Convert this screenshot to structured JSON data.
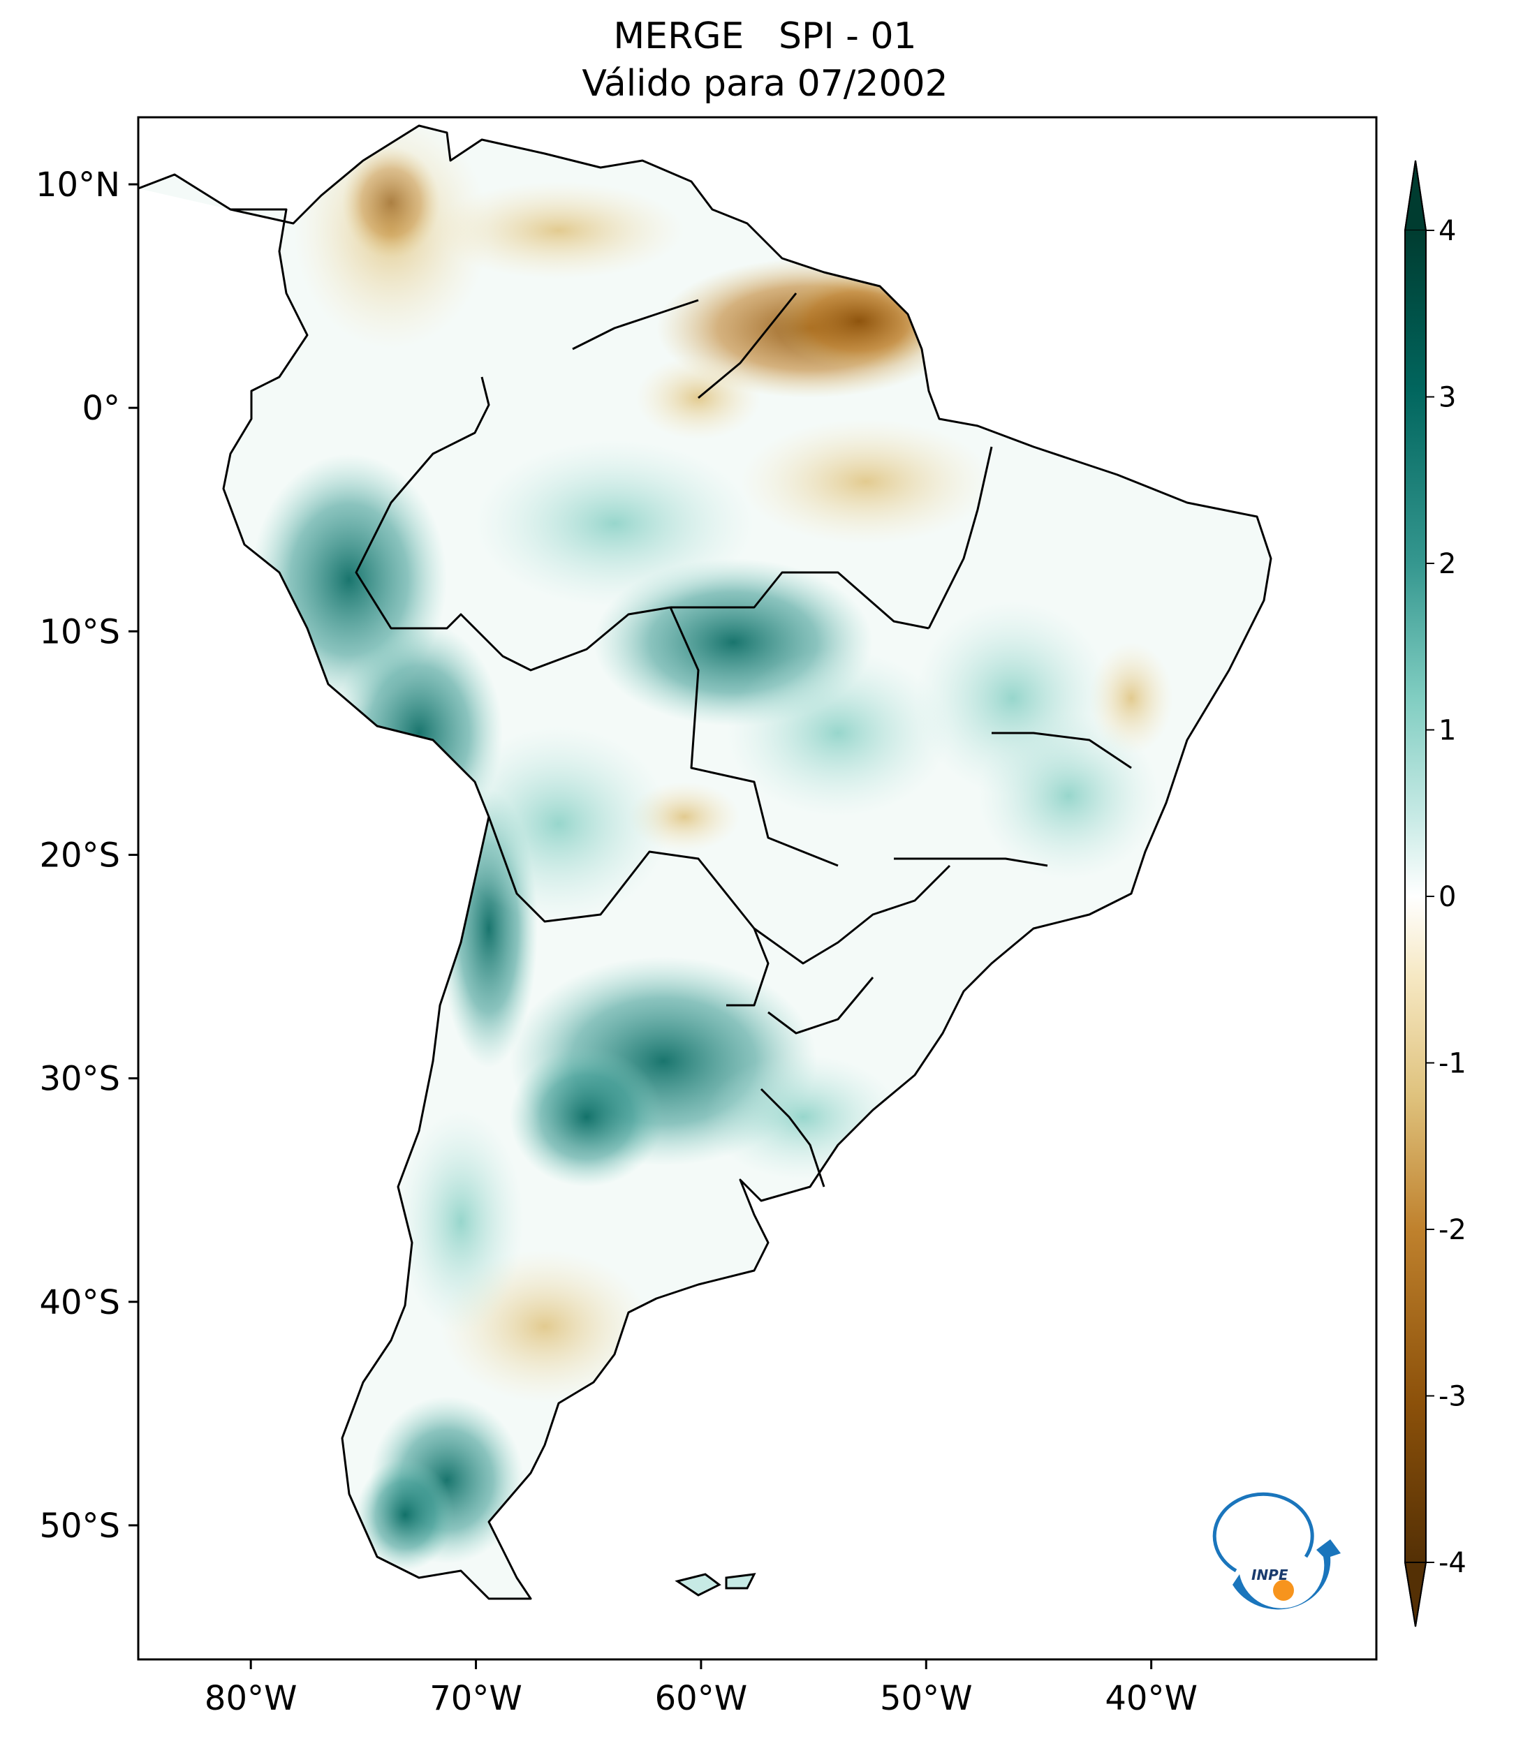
{
  "title": "MERGE   SPI - 01",
  "subtitle": "Válido para 07/2002",
  "map": {
    "lon_range": [
      -85,
      -30
    ],
    "lat_range": [
      -56,
      13
    ],
    "lon_ticks": [
      {
        "value": -80,
        "label": "80°W"
      },
      {
        "value": -70,
        "label": "70°W"
      },
      {
        "value": -60,
        "label": "60°W"
      },
      {
        "value": -50,
        "label": "50°W"
      },
      {
        "value": -40,
        "label": "40°W"
      }
    ],
    "lat_ticks": [
      {
        "value": 10,
        "label": "10°N"
      },
      {
        "value": 0,
        "label": "0°"
      },
      {
        "value": -10,
        "label": "10°S"
      },
      {
        "value": -20,
        "label": "20°S"
      },
      {
        "value": -30,
        "label": "30°S"
      },
      {
        "value": -40,
        "label": "40°S"
      },
      {
        "value": -50,
        "label": "50°S"
      }
    ]
  },
  "colorbar": {
    "min": -4,
    "max": 4,
    "extend": "both",
    "ticks": [
      {
        "value": 4,
        "label": "4"
      },
      {
        "value": 3,
        "label": "3"
      },
      {
        "value": 2,
        "label": "2"
      },
      {
        "value": 1,
        "label": "1"
      },
      {
        "value": 0,
        "label": "0"
      },
      {
        "value": -1,
        "label": "-1"
      },
      {
        "value": -2,
        "label": "-2"
      },
      {
        "value": -3,
        "label": "-3"
      },
      {
        "value": -4,
        "label": "-4"
      }
    ],
    "colors": [
      "#543005",
      "#8c510a",
      "#bf812d",
      "#dfc27d",
      "#f6e8c3",
      "#ffffff",
      "#c7eae5",
      "#80cdc1",
      "#35978f",
      "#01665e",
      "#003c30"
    ]
  },
  "logo": {
    "text": "INPE",
    "colors": {
      "blue": "#1a75bc",
      "orange": "#f7941d"
    }
  }
}
